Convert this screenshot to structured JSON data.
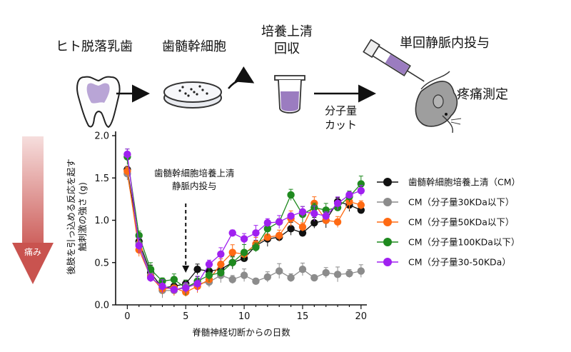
{
  "process": {
    "step1": "ヒト脱落乳歯",
    "step2": "歯髄幹細胞",
    "step3_line1": "培養上清",
    "step3_line2": "回収",
    "cut_line1": "分子量",
    "cut_line2": "カット",
    "step4": "単回静脈内投与",
    "step5": "疼痛測定"
  },
  "pain_arrow_label": "痛み",
  "colors": {
    "black": "#111111",
    "gray": "#8c8c8c",
    "orange": "#ff6a13",
    "green": "#1f8a1f",
    "purple": "#a020f0",
    "pain_arrow": "#c9534f",
    "tooth_pulp": "#b9a5d6",
    "medium": "#9b7cc0"
  },
  "chart_data": {
    "type": "line",
    "xlabel": "脊髄神経切断からの日数",
    "ylabel_line1": "後肢を引っ込める反応を起す",
    "ylabel_line2": "触刺激の強さ (g)",
    "xlim": [
      -1,
      20.5
    ],
    "ylim": [
      0,
      2.0
    ],
    "xticks": [
      0,
      5,
      10,
      15,
      20
    ],
    "yticks": [
      "0.0",
      "0.5",
      "1.0",
      "1.5",
      "2.0"
    ],
    "annotation_line1": "歯髄幹細胞培養上清",
    "annotation_line2": "静脈内投与",
    "annotation_x": 5,
    "x": [
      0,
      1,
      2,
      3,
      4,
      5,
      6,
      7,
      8,
      9,
      10,
      11,
      12,
      13,
      14,
      15,
      16,
      17,
      18,
      19,
      20
    ],
    "series": [
      {
        "name": "歯髄幹細胞培養上清（CM）",
        "color_key": "black",
        "values": [
          1.6,
          0.75,
          0.38,
          0.2,
          0.22,
          0.25,
          0.42,
          0.4,
          0.42,
          0.5,
          0.55,
          0.7,
          0.78,
          0.8,
          0.9,
          0.85,
          0.97,
          1.0,
          1.22,
          1.18,
          1.12
        ]
      },
      {
        "name": "CM（分子量30KDa以下）",
        "color_key": "gray",
        "values": [
          1.55,
          0.72,
          0.35,
          0.17,
          0.17,
          0.22,
          0.25,
          0.27,
          0.35,
          0.3,
          0.35,
          0.28,
          0.33,
          0.4,
          0.32,
          0.42,
          0.32,
          0.38,
          0.36,
          0.37,
          0.4
        ]
      },
      {
        "name": "CM（分子量50KDa以下）",
        "color_key": "orange",
        "values": [
          1.58,
          0.65,
          0.33,
          0.19,
          0.2,
          0.15,
          0.22,
          0.3,
          0.48,
          0.62,
          0.6,
          0.72,
          0.8,
          0.82,
          1.02,
          0.92,
          1.2,
          1.0,
          0.98,
          1.22,
          1.18
        ]
      },
      {
        "name": "CM（分子量100KDa以下）",
        "color_key": "green",
        "values": [
          1.75,
          0.82,
          0.42,
          0.28,
          0.3,
          0.2,
          0.28,
          0.35,
          0.38,
          0.5,
          0.62,
          0.68,
          0.9,
          0.98,
          1.3,
          1.07,
          1.15,
          1.12,
          1.15,
          1.28,
          1.43
        ]
      },
      {
        "name": "CM（分子量30-50KDa）",
        "color_key": "purple",
        "values": [
          1.78,
          0.7,
          0.32,
          0.22,
          0.18,
          0.2,
          0.25,
          0.48,
          0.6,
          0.85,
          0.78,
          0.85,
          0.97,
          0.98,
          1.05,
          1.1,
          1.08,
          1.05,
          1.2,
          1.3,
          1.35
        ]
      }
    ]
  }
}
